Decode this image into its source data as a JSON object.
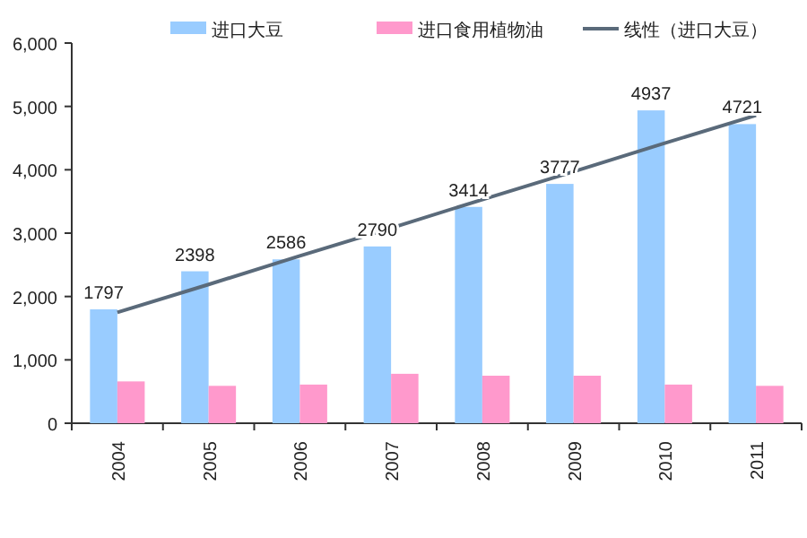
{
  "chart_data": {
    "type": "bar",
    "categories": [
      "2004",
      "2005",
      "2006",
      "2007",
      "2008",
      "2009",
      "2010",
      "2011"
    ],
    "series": [
      {
        "name": "进口大豆",
        "color": "#99ccff",
        "values": [
          1797,
          2398,
          2586,
          2790,
          3414,
          3777,
          4937,
          4721
        ],
        "value_labels": [
          "1797",
          "2398",
          "2586",
          "2790",
          "3414",
          "3777",
          "4937",
          "4721"
        ]
      },
      {
        "name": "进口食用植物油",
        "color": "#ff99cc",
        "values": [
          660,
          590,
          610,
          780,
          750,
          750,
          610,
          590
        ]
      },
      {
        "name": "线性（进口大豆）",
        "type": "line",
        "color": "#5a6a7a",
        "values": [
          1750,
          2190,
          2640,
          3080,
          3530,
          3970,
          4420,
          4860
        ]
      }
    ],
    "ylim": [
      0,
      6000
    ],
    "yticks": [
      {
        "value": 0,
        "label": "0"
      },
      {
        "value": 1000,
        "label": "1,000"
      },
      {
        "value": 2000,
        "label": "2,000"
      },
      {
        "value": 3000,
        "label": "3,000"
      },
      {
        "value": 4000,
        "label": "4,000"
      },
      {
        "value": 5000,
        "label": "5,000"
      },
      {
        "value": 6000,
        "label": "6,000"
      }
    ],
    "legend": "top",
    "grid": false
  }
}
